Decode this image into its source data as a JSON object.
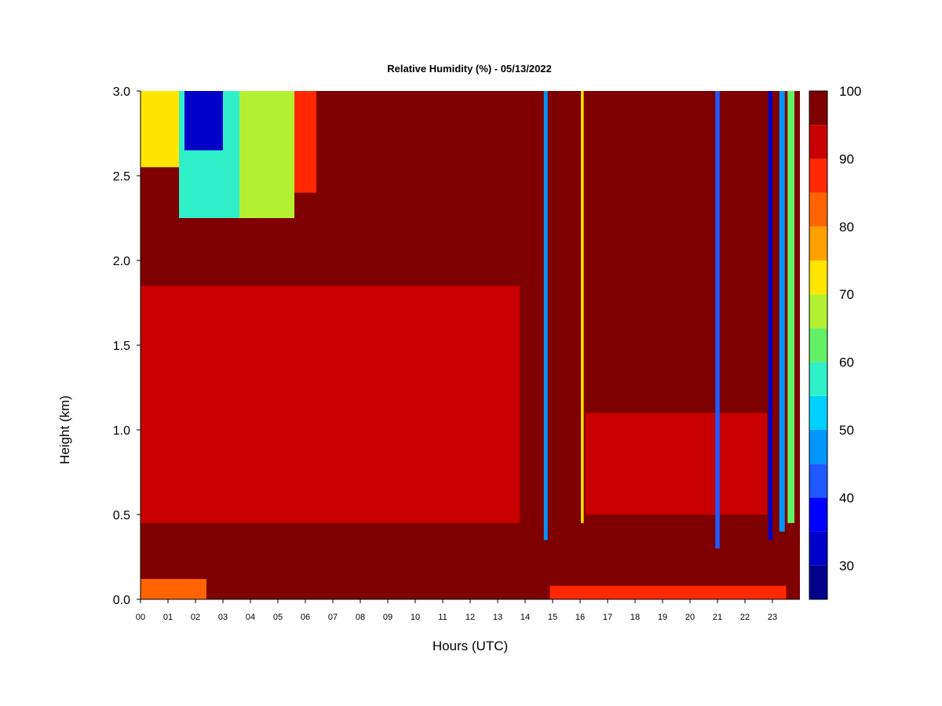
{
  "chart_data": {
    "type": "heatmap",
    "title": "Relative Humidity (%) - 05/13/2022",
    "xlabel": "Hours (UTC)",
    "ylabel": "Height (km)",
    "xlim": [
      0,
      24
    ],
    "ylim": [
      0,
      3
    ],
    "x_ticks": [
      "00",
      "01",
      "02",
      "03",
      "04",
      "05",
      "06",
      "07",
      "08",
      "09",
      "10",
      "11",
      "12",
      "13",
      "14",
      "15",
      "16",
      "17",
      "18",
      "19",
      "20",
      "21",
      "22",
      "23"
    ],
    "y_ticks": [
      "0.0",
      "0.5",
      "1.0",
      "1.5",
      "2.0",
      "2.5",
      "3.0"
    ],
    "colorbar": {
      "levels": [
        25,
        30,
        35,
        40,
        45,
        50,
        55,
        60,
        65,
        70,
        75,
        80,
        85,
        90,
        95,
        100
      ],
      "tick_labels": [
        "30",
        "40",
        "50",
        "60",
        "70",
        "80",
        "90",
        "100"
      ],
      "colors": [
        "#00008b",
        "#0000c8",
        "#0000ff",
        "#1e5aff",
        "#0096ff",
        "#00d2ff",
        "#2ff0c8",
        "#64f064",
        "#b4f032",
        "#ffe600",
        "#ffa000",
        "#ff6400",
        "#ff2800",
        "#c80000",
        "#7f0000"
      ]
    },
    "background_rh": 98,
    "features": [
      {
        "name": "surface-layer",
        "x": [
          0.0,
          2.4
        ],
        "y": [
          0.0,
          0.12
        ],
        "rh": 80
      },
      {
        "name": "surface-layer-pm",
        "x": [
          14.9,
          23.5
        ],
        "y": [
          0.0,
          0.08
        ],
        "rh": 88
      },
      {
        "name": "moist-layer-low",
        "x": [
          0.0,
          13.8
        ],
        "y": [
          0.45,
          1.85
        ],
        "rh": 91
      },
      {
        "name": "moist-layer-pm",
        "x": [
          16.2,
          22.8
        ],
        "y": [
          0.5,
          1.1
        ],
        "rh": 93
      },
      {
        "name": "dry-aloft-a",
        "x": [
          0.0,
          1.4
        ],
        "y": [
          2.55,
          3.0
        ],
        "rh": 72
      },
      {
        "name": "dry-aloft-b",
        "x": [
          1.4,
          3.6
        ],
        "y": [
          2.25,
          3.0
        ],
        "rh": 58
      },
      {
        "name": "dry-aloft-core",
        "x": [
          1.6,
          3.0
        ],
        "y": [
          2.65,
          3.0
        ],
        "rh": 33
      },
      {
        "name": "dry-aloft-c",
        "x": [
          3.6,
          5.6
        ],
        "y": [
          2.25,
          3.0
        ],
        "rh": 66
      },
      {
        "name": "dry-aloft-d",
        "x": [
          5.6,
          6.4
        ],
        "y": [
          2.4,
          3.0
        ],
        "rh": 86
      },
      {
        "name": "streak-1445",
        "x": [
          14.68,
          14.82
        ],
        "y": [
          0.35,
          3.0
        ],
        "rh": 45
      },
      {
        "name": "streak-1605",
        "x": [
          16.03,
          16.13
        ],
        "y": [
          0.45,
          3.0
        ],
        "rh": 70
      },
      {
        "name": "streak-2100",
        "x": [
          20.92,
          21.08
        ],
        "y": [
          0.3,
          3.0
        ],
        "rh": 42
      },
      {
        "name": "streak-2255",
        "x": [
          22.85,
          23.0
        ],
        "y": [
          0.35,
          3.0
        ],
        "rh": 32
      },
      {
        "name": "streak-2320",
        "x": [
          23.25,
          23.45
        ],
        "y": [
          0.4,
          3.0
        ],
        "rh": 45
      },
      {
        "name": "streak-2335",
        "x": [
          23.55,
          23.8
        ],
        "y": [
          0.45,
          3.0
        ],
        "rh": 62
      }
    ]
  }
}
